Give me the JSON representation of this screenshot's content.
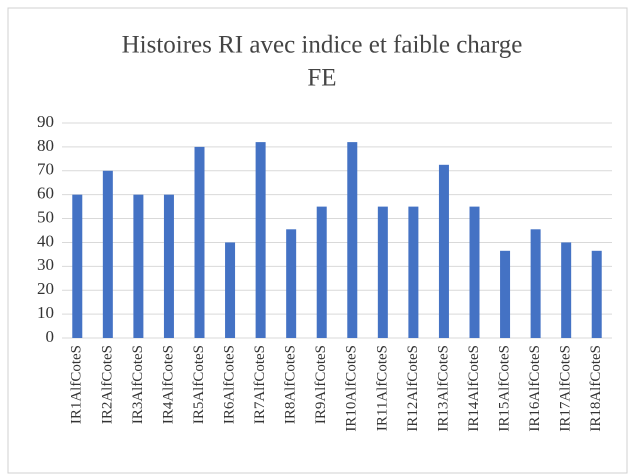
{
  "chart_data": {
    "type": "bar",
    "title": [
      "Histoires RI avec indice et faible charge",
      "FE"
    ],
    "categories": [
      "IR1AlfCoteS",
      "IR2AlfCoteS",
      "IR3AlfCoteS",
      "IR4AlfCoteS",
      "IR5AlfCoteS",
      "IR6AlfCoteS",
      "IR7AlfCoteS",
      "IR8AlfCoteS",
      "IR9AlfCoteS",
      "IR10AlfCoteS",
      "IR11AlfCoteS",
      "IR12AlfCoteS",
      "IR13AlfCoteS",
      "IR14AlfCoteS",
      "IR15AlfCoteS",
      "IR16AlfCoteS",
      "IR17AlfCoteS",
      "IR18AlfCoteS"
    ],
    "values": [
      60,
      70,
      60,
      60,
      80,
      40,
      82,
      45.5,
      55,
      82,
      55,
      55,
      72.5,
      55,
      36.5,
      45.5,
      40,
      36.5
    ],
    "color": "#4472c4",
    "ylim": [
      0,
      90
    ],
    "yticks": [
      0,
      10,
      20,
      30,
      40,
      50,
      60,
      70,
      80,
      90
    ],
    "grid": true
  }
}
